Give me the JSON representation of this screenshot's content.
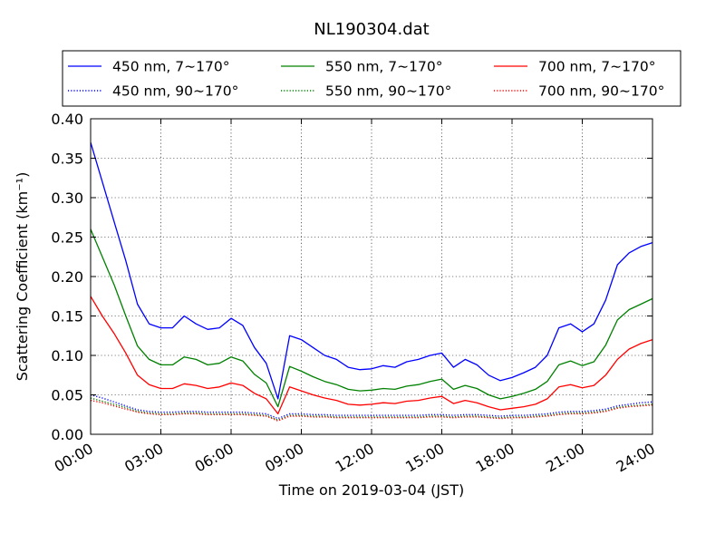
{
  "chart_data": {
    "type": "line",
    "title": "NL190304.dat",
    "xlabel": "Time on 2019-03-04 (JST)",
    "ylabel": "Scattering Coefficient (km⁻¹)",
    "xlim": [
      0,
      24
    ],
    "ylim": [
      0,
      0.4
    ],
    "grid": true,
    "legend_position": "top",
    "x_tick_labels": [
      "00:00",
      "03:00",
      "06:00",
      "09:00",
      "12:00",
      "15:00",
      "18:00",
      "21:00",
      "24:00"
    ],
    "y_tick_labels": [
      "0.00",
      "0.05",
      "0.10",
      "0.15",
      "0.20",
      "0.25",
      "0.30",
      "0.35",
      "0.40"
    ],
    "x_hours": [
      0,
      0.5,
      1,
      1.5,
      2,
      2.5,
      3,
      3.5,
      4,
      4.5,
      5,
      5.5,
      6,
      6.5,
      7,
      7.5,
      8,
      8.5,
      9,
      9.5,
      10,
      10.5,
      11,
      11.5,
      12,
      12.5,
      13,
      13.5,
      14,
      14.5,
      15,
      15.5,
      16,
      16.5,
      17,
      17.5,
      18,
      18.5,
      19,
      19.5,
      20,
      20.5,
      21,
      21.5,
      22,
      22.5,
      23,
      23.5,
      24
    ],
    "series": [
      {
        "name": "450 nm, 7∼170°",
        "color": "#0000ff",
        "style": "solid",
        "values": [
          0.37,
          0.32,
          0.27,
          0.22,
          0.165,
          0.14,
          0.135,
          0.135,
          0.15,
          0.14,
          0.133,
          0.135,
          0.147,
          0.138,
          0.11,
          0.09,
          0.045,
          0.125,
          0.12,
          0.11,
          0.1,
          0.095,
          0.085,
          0.082,
          0.083,
          0.087,
          0.085,
          0.092,
          0.095,
          0.1,
          0.103,
          0.085,
          0.095,
          0.088,
          0.075,
          0.068,
          0.072,
          0.078,
          0.085,
          0.1,
          0.135,
          0.14,
          0.13,
          0.14,
          0.17,
          0.215,
          0.23,
          0.238,
          0.243
        ]
      },
      {
        "name": "550 nm, 7∼170°",
        "color": "#008000",
        "style": "solid",
        "values": [
          0.26,
          0.225,
          0.19,
          0.15,
          0.112,
          0.095,
          0.088,
          0.088,
          0.098,
          0.095,
          0.088,
          0.09,
          0.098,
          0.093,
          0.076,
          0.065,
          0.035,
          0.086,
          0.08,
          0.073,
          0.067,
          0.063,
          0.057,
          0.055,
          0.056,
          0.058,
          0.057,
          0.061,
          0.063,
          0.067,
          0.07,
          0.057,
          0.062,
          0.058,
          0.05,
          0.045,
          0.048,
          0.052,
          0.057,
          0.067,
          0.088,
          0.093,
          0.087,
          0.092,
          0.113,
          0.145,
          0.158,
          0.165,
          0.172
        ]
      },
      {
        "name": "700 nm, 7∼170°",
        "color": "#ff0000",
        "style": "solid",
        "values": [
          0.175,
          0.15,
          0.128,
          0.103,
          0.075,
          0.063,
          0.058,
          0.058,
          0.064,
          0.062,
          0.058,
          0.06,
          0.065,
          0.062,
          0.052,
          0.045,
          0.026,
          0.06,
          0.055,
          0.05,
          0.046,
          0.043,
          0.038,
          0.037,
          0.038,
          0.04,
          0.039,
          0.042,
          0.043,
          0.046,
          0.048,
          0.039,
          0.043,
          0.04,
          0.035,
          0.031,
          0.033,
          0.035,
          0.038,
          0.045,
          0.06,
          0.063,
          0.059,
          0.062,
          0.075,
          0.095,
          0.108,
          0.115,
          0.12
        ]
      },
      {
        "name": "450 nm, 90∼170°",
        "color": "#0000ff",
        "style": "dotted",
        "values": [
          0.05,
          0.046,
          0.041,
          0.036,
          0.031,
          0.029,
          0.028,
          0.028,
          0.029,
          0.029,
          0.028,
          0.028,
          0.028,
          0.028,
          0.027,
          0.026,
          0.02,
          0.026,
          0.026,
          0.025,
          0.025,
          0.024,
          0.024,
          0.024,
          0.024,
          0.024,
          0.024,
          0.024,
          0.024,
          0.025,
          0.025,
          0.024,
          0.025,
          0.025,
          0.024,
          0.023,
          0.024,
          0.024,
          0.025,
          0.026,
          0.028,
          0.029,
          0.029,
          0.03,
          0.032,
          0.036,
          0.038,
          0.04,
          0.041
        ]
      },
      {
        "name": "550 nm, 90∼170°",
        "color": "#008000",
        "style": "dotted",
        "values": [
          0.046,
          0.042,
          0.038,
          0.034,
          0.029,
          0.027,
          0.026,
          0.026,
          0.027,
          0.027,
          0.026,
          0.026,
          0.026,
          0.026,
          0.025,
          0.024,
          0.018,
          0.024,
          0.024,
          0.023,
          0.023,
          0.022,
          0.022,
          0.022,
          0.022,
          0.022,
          0.022,
          0.022,
          0.022,
          0.023,
          0.023,
          0.022,
          0.023,
          0.023,
          0.022,
          0.021,
          0.022,
          0.022,
          0.023,
          0.024,
          0.026,
          0.027,
          0.027,
          0.028,
          0.03,
          0.034,
          0.036,
          0.037,
          0.038
        ]
      },
      {
        "name": "700 nm, 90∼170°",
        "color": "#ff0000",
        "style": "dotted",
        "values": [
          0.043,
          0.04,
          0.036,
          0.032,
          0.028,
          0.026,
          0.025,
          0.025,
          0.026,
          0.026,
          0.025,
          0.025,
          0.025,
          0.025,
          0.024,
          0.023,
          0.017,
          0.023,
          0.023,
          0.022,
          0.022,
          0.021,
          0.021,
          0.021,
          0.021,
          0.021,
          0.021,
          0.021,
          0.021,
          0.022,
          0.022,
          0.021,
          0.022,
          0.022,
          0.021,
          0.02,
          0.021,
          0.021,
          0.022,
          0.023,
          0.025,
          0.026,
          0.026,
          0.027,
          0.029,
          0.033,
          0.035,
          0.036,
          0.037
        ]
      }
    ]
  }
}
